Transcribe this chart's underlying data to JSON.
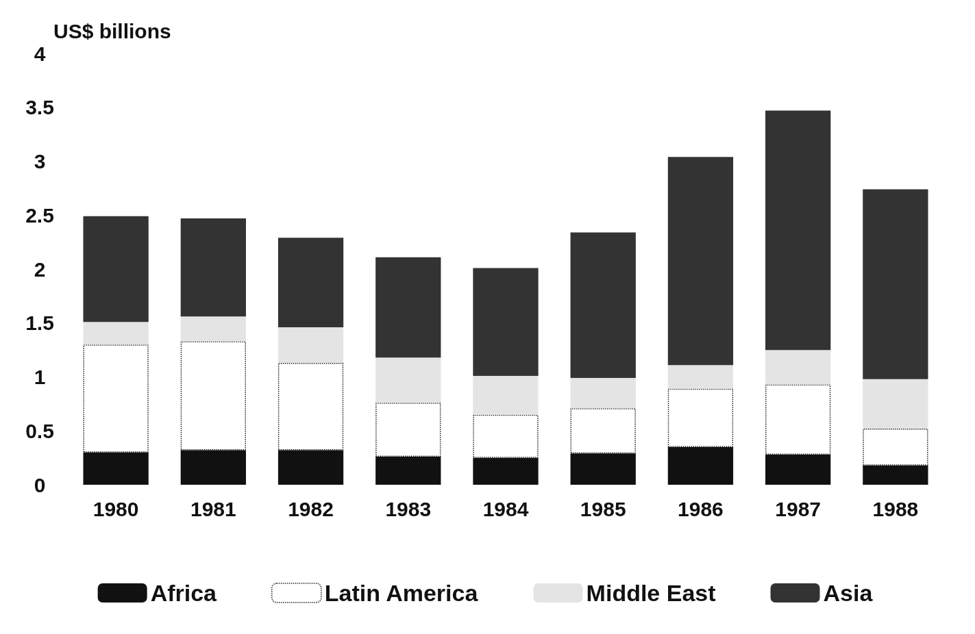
{
  "chart_data": {
    "type": "bar",
    "stacked": true,
    "ylabel": "US$ billions",
    "categories": [
      "1980",
      "1981",
      "1982",
      "1983",
      "1984",
      "1985",
      "1986",
      "1987",
      "1988"
    ],
    "series": [
      {
        "name": "Africa",
        "color": "#111111",
        "values": [
          0.3,
          0.32,
          0.32,
          0.26,
          0.25,
          0.29,
          0.35,
          0.28,
          0.18
        ]
      },
      {
        "name": "Latin America",
        "color": "#ffffff",
        "line_style": "dotted",
        "values": [
          1.0,
          1.01,
          0.81,
          0.5,
          0.4,
          0.42,
          0.54,
          0.65,
          0.34
        ]
      },
      {
        "name": "Middle East",
        "color": "#e4e4e4",
        "values": [
          0.21,
          0.23,
          0.33,
          0.42,
          0.36,
          0.28,
          0.22,
          0.32,
          0.46
        ]
      },
      {
        "name": "Asia",
        "color": "#333333",
        "values": [
          0.98,
          0.91,
          0.83,
          0.93,
          1.0,
          1.35,
          1.93,
          2.22,
          1.76
        ]
      }
    ],
    "ylim": [
      0,
      4
    ],
    "yticks": [
      0,
      0.5,
      1,
      1.5,
      2,
      2.5,
      3,
      3.5,
      4
    ],
    "grid": false,
    "legend": "bottom"
  }
}
